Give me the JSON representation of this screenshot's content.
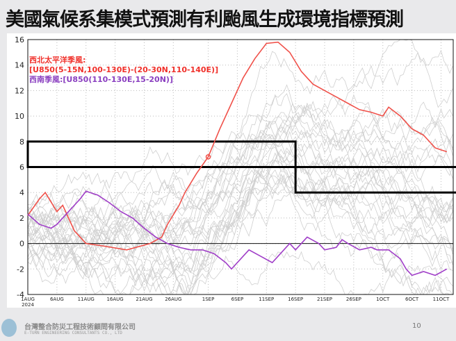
{
  "header": {
    "title": "美國氣候系集模式預測有利颱風生成環境指標預測"
  },
  "footer": {
    "company_cn": "台灣整合防災工程技術顧問有限公司",
    "company_en": "E-TURN ENGINEERING CONSULTANTS CO., LTD",
    "page_number": "10"
  },
  "chart_data": {
    "type": "line",
    "title": "",
    "xlabel": "",
    "ylabel": "",
    "ylim": [
      -4,
      16
    ],
    "yticks": [
      "-4",
      "-2",
      "0",
      "2",
      "4",
      "6",
      "8",
      "10",
      "12",
      "14",
      "16"
    ],
    "xticks": [
      "1AUG\n2024",
      "6AUG",
      "11AUG",
      "16AUG",
      "21AUG",
      "26AUG",
      "1SEP",
      "6SEP",
      "11SEP",
      "16SEP",
      "21SEP",
      "26SEP",
      "1OCT",
      "6OCT",
      "11OCT"
    ],
    "xtick_days": [
      0,
      5,
      10,
      15,
      20,
      25,
      31,
      36,
      41,
      46,
      51,
      56,
      61,
      66,
      71
    ],
    "x_unit": "days since 1AUG 2024",
    "grid": true,
    "annotations": {
      "wnp_label": "西北太平洋季風:",
      "wnp_formula": "[U850(5-15N,100-130E)-(20-30N,110-140E)]",
      "sw_label": "西南季風:[U850(110-130E,15-20N)]"
    },
    "series": [
      {
        "name": "西北太平洋季風",
        "color": "#f0514a",
        "x": [
          0,
          2,
          3,
          5,
          6,
          8,
          10,
          13,
          17,
          21,
          23,
          24,
          26,
          27,
          29,
          31,
          33,
          35,
          37,
          39,
          41,
          43,
          45,
          47,
          49,
          51,
          53,
          55,
          57,
          59,
          61,
          62,
          64,
          66,
          68,
          70,
          72
        ],
        "y": [
          2.2,
          3.5,
          4,
          2.5,
          3,
          1,
          0,
          -0.2,
          -0.5,
          0,
          0.5,
          1.5,
          3,
          4,
          5.5,
          6.8,
          9,
          11,
          13,
          14.5,
          15.7,
          15.8,
          15,
          13.5,
          12.5,
          12,
          11.5,
          11,
          10.5,
          10.3,
          10,
          10.7,
          10,
          9,
          8.5,
          7.5,
          7.2
        ]
      },
      {
        "name": "西南季風",
        "color": "#a03ec8",
        "x": [
          0,
          2,
          4,
          5,
          7,
          9,
          10,
          12,
          14,
          16,
          18,
          20,
          22,
          24,
          26,
          28,
          30,
          32,
          34,
          35,
          37,
          38,
          40,
          42,
          43,
          45,
          46,
          47,
          48,
          50,
          51,
          53,
          54,
          55,
          57,
          59,
          60,
          62,
          64,
          65,
          66,
          68,
          70,
          72
        ],
        "y": [
          2.3,
          1.5,
          1.2,
          1.5,
          2.5,
          3.5,
          4.1,
          3.8,
          3.2,
          2.5,
          2,
          1.2,
          0.5,
          0,
          -0.3,
          -0.5,
          -0.5,
          -0.8,
          -1.5,
          -2,
          -1,
          -0.5,
          -1,
          -1.5,
          -1,
          0,
          -0.5,
          0,
          0.5,
          0,
          -0.5,
          -0.3,
          0.3,
          0,
          -0.5,
          -0.3,
          -0.5,
          -0.5,
          -1.2,
          -2,
          -2.5,
          -2.2,
          -2.5,
          -2
        ]
      }
    ],
    "marker": {
      "x": 31,
      "y": 6.8,
      "color": "#f0514a"
    },
    "threshold_boxes": [
      {
        "x_start": 0,
        "x_end": 46,
        "y_low": 6,
        "y_high": 8
      },
      {
        "x_start": 46,
        "x_end": 73,
        "y_low": 4,
        "y_high": 6
      }
    ]
  }
}
